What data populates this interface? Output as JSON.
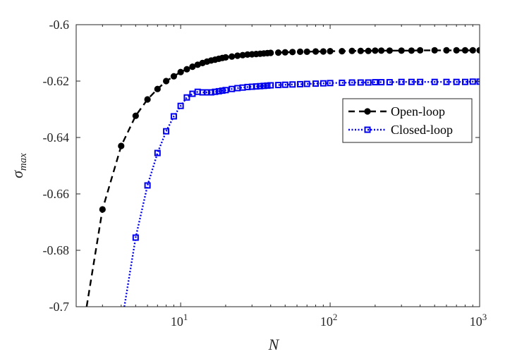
{
  "chart_data": {
    "type": "line",
    "title": "",
    "xlabel": "N",
    "ylabel": {
      "base": "σ",
      "subscript": "max"
    },
    "x_scale": "log",
    "xlim": [
      2,
      1000
    ],
    "ylim": [
      -0.7,
      -0.6
    ],
    "x_ticks": [
      {
        "value": 10,
        "base": "10",
        "exp": "1"
      },
      {
        "value": 100,
        "base": "10",
        "exp": "2"
      },
      {
        "value": 1000,
        "base": "10",
        "exp": "3"
      }
    ],
    "y_ticks": [
      {
        "value": -0.6,
        "label": "-0.6"
      },
      {
        "value": -0.62,
        "label": "-0.62"
      },
      {
        "value": -0.64,
        "label": "-0.64"
      },
      {
        "value": -0.66,
        "label": "-0.66"
      },
      {
        "value": -0.68,
        "label": "-0.68"
      },
      {
        "value": -0.7,
        "label": "-0.7"
      }
    ],
    "grid": false,
    "legend_position": "right",
    "series": [
      {
        "name": "Open-loop",
        "color": "#000000",
        "line_style": "dashed",
        "marker": "circle",
        "curve_start": {
          "x": 2.35,
          "y": -0.7
        },
        "x": [
          3,
          4,
          5,
          6,
          7,
          8,
          9,
          10,
          11,
          12,
          13,
          14,
          15,
          16,
          17,
          18,
          19,
          20,
          22,
          24,
          26,
          28,
          30,
          32,
          34,
          36,
          38,
          40,
          45,
          50,
          56,
          63,
          70,
          80,
          90,
          100,
          120,
          140,
          160,
          180,
          200,
          220,
          250,
          300,
          350,
          400,
          500,
          600,
          700,
          800,
          900,
          1000
        ],
        "y": [
          -0.6655,
          -0.643,
          -0.6323,
          -0.6265,
          -0.6228,
          -0.62,
          -0.6183,
          -0.6168,
          -0.6158,
          -0.6149,
          -0.6142,
          -0.6136,
          -0.6131,
          -0.6127,
          -0.6124,
          -0.6121,
          -0.6118,
          -0.6116,
          -0.6113,
          -0.611,
          -0.6108,
          -0.6106,
          -0.6105,
          -0.6104,
          -0.6103,
          -0.6102,
          -0.6101,
          -0.61,
          -0.6099,
          -0.6098,
          -0.6097,
          -0.6096,
          -0.6096,
          -0.6095,
          -0.6095,
          -0.6094,
          -0.6094,
          -0.6093,
          -0.6093,
          -0.6093,
          -0.6092,
          -0.6092,
          -0.6092,
          -0.6092,
          -0.6092,
          -0.6091,
          -0.6091,
          -0.6091,
          -0.6091,
          -0.6091,
          -0.6091,
          -0.6091
        ]
      },
      {
        "name": "Closed-loop",
        "color": "#0000ee",
        "line_style": "dotted",
        "marker": "square",
        "curve_start": {
          "x": 4.2,
          "y": -0.7
        },
        "x": [
          5,
          6,
          7,
          8,
          9,
          10,
          11,
          12,
          13,
          14,
          15,
          16,
          17,
          18,
          19,
          20,
          22,
          24,
          26,
          28,
          30,
          32,
          34,
          36,
          38,
          40,
          45,
          50,
          56,
          63,
          70,
          80,
          90,
          100,
          120,
          140,
          160,
          180,
          200,
          220,
          250,
          300,
          350,
          400,
          500,
          600,
          700,
          800,
          900,
          1000
        ],
        "y": [
          -0.6755,
          -0.657,
          -0.6455,
          -0.6378,
          -0.6325,
          -0.6288,
          -0.6258,
          -0.6245,
          -0.6238,
          -0.624,
          -0.624,
          -0.624,
          -0.6238,
          -0.6236,
          -0.6234,
          -0.6232,
          -0.6228,
          -0.6225,
          -0.6223,
          -0.6221,
          -0.622,
          -0.6219,
          -0.6218,
          -0.6217,
          -0.6216,
          -0.6215,
          -0.6214,
          -0.6213,
          -0.6212,
          -0.6211,
          -0.621,
          -0.6209,
          -0.6208,
          -0.6207,
          -0.6206,
          -0.6205,
          -0.6205,
          -0.6205,
          -0.6204,
          -0.6204,
          -0.6204,
          -0.6203,
          -0.6203,
          -0.6203,
          -0.6203,
          -0.6203,
          -0.6203,
          -0.6203,
          -0.6202,
          -0.6202
        ]
      }
    ]
  }
}
